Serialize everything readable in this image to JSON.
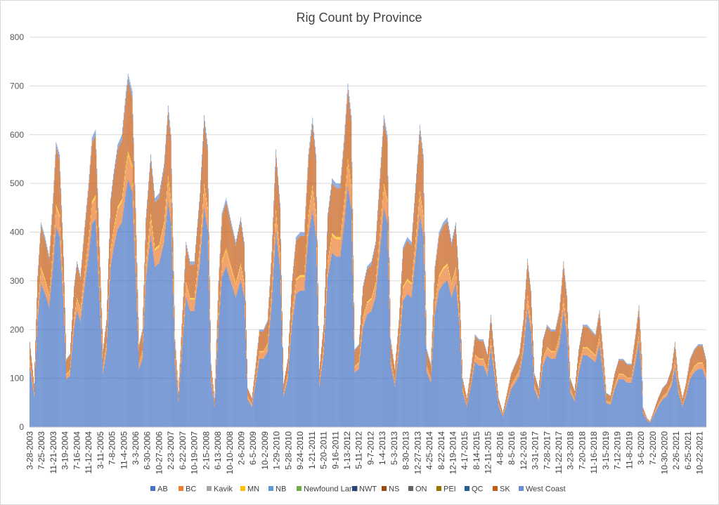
{
  "chart_data": {
    "type": "bar",
    "stacked": true,
    "title": "Rig Count by Province",
    "ylim": [
      0,
      800
    ],
    "yticks": [
      0,
      100,
      200,
      300,
      400,
      500,
      600,
      700,
      800
    ],
    "grid": true,
    "legend_position": "bottom",
    "x_tick_labels": [
      "3-28-2003",
      "7-25-2003",
      "11-21-2003",
      "3-19-2004",
      "7-16-2004",
      "11-12-2004",
      "3-11-2005",
      "7-8-2005",
      "11-4-2005",
      "3-3-2006",
      "6-30-2006",
      "10-27-2006",
      "2-23-2007",
      "6-22-2007",
      "10-19-2007",
      "2-15-2008",
      "6-13-2008",
      "10-10-2008",
      "2-6-2009",
      "6-5-2009",
      "10-2-2009",
      "1-29-2010",
      "5-28-2010",
      "9-24-2010",
      "1-21-2011",
      "5-20-2011",
      "9-16-2011",
      "1-13-2012",
      "5-11-2012",
      "9-7-2012",
      "1-4-2013",
      "5-3-2013",
      "8-30-2013",
      "12-27-2013",
      "4-25-2014",
      "8-22-2014",
      "12-19-2014",
      "4-17-2015",
      "8-14-2015",
      "12-11-2015",
      "4-8-2016",
      "8-5-2016",
      "12-2-2016",
      "3-31-2017",
      "7-28-2017",
      "11-22-2017",
      "3-23-2018",
      "7-20-2018",
      "11-16-2018",
      "3-15-2019",
      "7-12-2019",
      "11-8-2019",
      "3-6-2020",
      "7-2-2020",
      "10-30-2020",
      "2-26-2021",
      "6-25-2021",
      "10-22-2021"
    ],
    "x_start": "2003-03-28",
    "x_end": "2021-12-24",
    "tick_every_weeks": 17,
    "total_anchor_points": [
      [
        "2003-03-28",
        175
      ],
      [
        "2003-05-09",
        90
      ],
      [
        "2003-06-13",
        310
      ],
      [
        "2003-07-18",
        420
      ],
      [
        "2003-08-29",
        390
      ],
      [
        "2003-10-10",
        350
      ],
      [
        "2003-11-21",
        480
      ],
      [
        "2003-12-19",
        585
      ],
      [
        "2004-01-23",
        560
      ],
      [
        "2004-03-05",
        350
      ],
      [
        "2004-04-02",
        140
      ],
      [
        "2004-05-07",
        150
      ],
      [
        "2004-06-18",
        290
      ],
      [
        "2004-07-16",
        340
      ],
      [
        "2004-08-20",
        310
      ],
      [
        "2004-10-01",
        410
      ],
      [
        "2004-11-12",
        500
      ],
      [
        "2004-12-17",
        595
      ],
      [
        "2005-01-21",
        610
      ],
      [
        "2005-03-04",
        370
      ],
      [
        "2005-04-08",
        160
      ],
      [
        "2005-05-13",
        220
      ],
      [
        "2005-06-24",
        470
      ],
      [
        "2005-07-22",
        520
      ],
      [
        "2005-09-02",
        580
      ],
      [
        "2005-10-14",
        600
      ],
      [
        "2005-11-25",
        690
      ],
      [
        "2005-12-16",
        725
      ],
      [
        "2006-01-27",
        690
      ],
      [
        "2006-03-03",
        450
      ],
      [
        "2006-04-07",
        170
      ],
      [
        "2006-05-12",
        200
      ],
      [
        "2006-06-16",
        430
      ],
      [
        "2006-08-04",
        560
      ],
      [
        "2006-09-15",
        470
      ],
      [
        "2006-10-27",
        480
      ],
      [
        "2006-12-15",
        540
      ],
      [
        "2007-01-26",
        660
      ],
      [
        "2007-02-23",
        600
      ],
      [
        "2007-04-06",
        180
      ],
      [
        "2007-05-11",
        75
      ],
      [
        "2007-06-22",
        240
      ],
      [
        "2007-07-27",
        380
      ],
      [
        "2007-09-07",
        340
      ],
      [
        "2007-10-19",
        340
      ],
      [
        "2007-12-14",
        480
      ],
      [
        "2008-01-25",
        640
      ],
      [
        "2008-02-29",
        580
      ],
      [
        "2008-04-04",
        130
      ],
      [
        "2008-05-09",
        60
      ],
      [
        "2008-06-20",
        300
      ],
      [
        "2008-07-25",
        440
      ],
      [
        "2008-09-05",
        470
      ],
      [
        "2008-10-17",
        430
      ],
      [
        "2008-12-12",
        380
      ],
      [
        "2009-01-30",
        430
      ],
      [
        "2009-03-06",
        380
      ],
      [
        "2009-04-10",
        80
      ],
      [
        "2009-05-22",
        60
      ],
      [
        "2009-06-26",
        120
      ],
      [
        "2009-08-07",
        200
      ],
      [
        "2009-09-18",
        200
      ],
      [
        "2009-10-30",
        220
      ],
      [
        "2009-12-11",
        360
      ],
      [
        "2010-01-22",
        570
      ],
      [
        "2010-03-05",
        460
      ],
      [
        "2010-04-09",
        90
      ],
      [
        "2010-05-21",
        140
      ],
      [
        "2010-07-02",
        300
      ],
      [
        "2010-08-13",
        390
      ],
      [
        "2010-09-24",
        400
      ],
      [
        "2010-11-05",
        400
      ],
      [
        "2010-12-17",
        560
      ],
      [
        "2011-01-28",
        635
      ],
      [
        "2011-03-04",
        560
      ],
      [
        "2011-04-08",
        120
      ],
      [
        "2011-05-20",
        210
      ],
      [
        "2011-07-01",
        440
      ],
      [
        "2011-08-12",
        510
      ],
      [
        "2011-09-23",
        500
      ],
      [
        "2011-11-04",
        500
      ],
      [
        "2011-12-16",
        600
      ],
      [
        "2012-01-20",
        705
      ],
      [
        "2012-02-24",
        640
      ],
      [
        "2012-03-30",
        160
      ],
      [
        "2012-05-11",
        170
      ],
      [
        "2012-06-22",
        290
      ],
      [
        "2012-08-03",
        330
      ],
      [
        "2012-09-14",
        340
      ],
      [
        "2012-10-26",
        380
      ],
      [
        "2012-12-07",
        510
      ],
      [
        "2013-01-18",
        640
      ],
      [
        "2013-02-22",
        600
      ],
      [
        "2013-03-29",
        180
      ],
      [
        "2013-05-10",
        120
      ],
      [
        "2013-06-21",
        220
      ],
      [
        "2013-08-02",
        370
      ],
      [
        "2013-09-13",
        390
      ],
      [
        "2013-10-25",
        380
      ],
      [
        "2013-12-06",
        500
      ],
      [
        "2014-01-17",
        620
      ],
      [
        "2014-02-21",
        560
      ],
      [
        "2014-03-28",
        160
      ],
      [
        "2014-05-09",
        130
      ],
      [
        "2014-06-20",
        330
      ],
      [
        "2014-08-01",
        400
      ],
      [
        "2014-09-12",
        420
      ],
      [
        "2014-10-24",
        430
      ],
      [
        "2014-12-05",
        380
      ],
      [
        "2015-01-16",
        420
      ],
      [
        "2015-02-20",
        300
      ],
      [
        "2015-03-27",
        100
      ],
      [
        "2015-05-08",
        60
      ],
      [
        "2015-06-19",
        120
      ],
      [
        "2015-07-31",
        190
      ],
      [
        "2015-09-11",
        180
      ],
      [
        "2015-10-23",
        180
      ],
      [
        "2015-12-04",
        150
      ],
      [
        "2016-01-08",
        230
      ],
      [
        "2016-02-12",
        150
      ],
      [
        "2016-03-25",
        60
      ],
      [
        "2016-05-06",
        30
      ],
      [
        "2016-06-17",
        70
      ],
      [
        "2016-07-29",
        110
      ],
      [
        "2016-09-09",
        130
      ],
      [
        "2016-10-21",
        150
      ],
      [
        "2016-12-02",
        220
      ],
      [
        "2017-01-13",
        345
      ],
      [
        "2017-02-17",
        280
      ],
      [
        "2017-03-24",
        110
      ],
      [
        "2017-05-05",
        80
      ],
      [
        "2017-06-16",
        180
      ],
      [
        "2017-07-28",
        210
      ],
      [
        "2017-09-08",
        200
      ],
      [
        "2017-10-20",
        200
      ],
      [
        "2017-12-01",
        240
      ],
      [
        "2018-01-12",
        340
      ],
      [
        "2018-02-16",
        270
      ],
      [
        "2018-03-23",
        100
      ],
      [
        "2018-05-04",
        75
      ],
      [
        "2018-06-15",
        160
      ],
      [
        "2018-07-27",
        210
      ],
      [
        "2018-09-07",
        210
      ],
      [
        "2018-10-19",
        200
      ],
      [
        "2018-11-30",
        190
      ],
      [
        "2019-01-11",
        240
      ],
      [
        "2019-02-15",
        160
      ],
      [
        "2019-03-22",
        70
      ],
      [
        "2019-05-03",
        65
      ],
      [
        "2019-06-14",
        110
      ],
      [
        "2019-07-26",
        140
      ],
      [
        "2019-09-06",
        140
      ],
      [
        "2019-10-18",
        130
      ],
      [
        "2019-11-29",
        130
      ],
      [
        "2020-01-10",
        190
      ],
      [
        "2020-02-14",
        250
      ],
      [
        "2020-03-13",
        150
      ],
      [
        "2020-03-27",
        40
      ],
      [
        "2020-05-08",
        18
      ],
      [
        "2020-06-05",
        12
      ],
      [
        "2020-07-17",
        35
      ],
      [
        "2020-08-28",
        60
      ],
      [
        "2020-10-09",
        80
      ],
      [
        "2020-11-20",
        90
      ],
      [
        "2021-01-08",
        120
      ],
      [
        "2021-02-12",
        175
      ],
      [
        "2021-03-19",
        100
      ],
      [
        "2021-04-30",
        60
      ],
      [
        "2021-06-04",
        90
      ],
      [
        "2021-07-16",
        140
      ],
      [
        "2021-08-27",
        160
      ],
      [
        "2021-10-08",
        170
      ],
      [
        "2021-11-19",
        170
      ],
      [
        "2021-12-24",
        140
      ]
    ],
    "series": [
      {
        "name": "AB",
        "color": "#4472C4",
        "share_of_total": 0.7
      },
      {
        "name": "BC",
        "color": "#ED7D31",
        "share_of_total": 0.07
      },
      {
        "name": "Kavik",
        "color": "#A5A5A5",
        "share_of_total": 0
      },
      {
        "name": "MN",
        "color": "#FFC000",
        "share_of_total": 0.01
      },
      {
        "name": "NB",
        "color": "#5B9BD5",
        "share_of_total": 0
      },
      {
        "name": "Newfound Land",
        "color": "#70AD47",
        "share_of_total": 0
      },
      {
        "name": "NWT",
        "color": "#264478",
        "share_of_total": 0
      },
      {
        "name": "NS",
        "color": "#9E480E",
        "share_of_total": 0
      },
      {
        "name": "ON",
        "color": "#636363",
        "share_of_total": 0
      },
      {
        "name": "PEI",
        "color": "#997300",
        "share_of_total": 0
      },
      {
        "name": "QC",
        "color": "#255E91",
        "share_of_total": 0
      },
      {
        "name": "SK",
        "color": "#C55A11",
        "share_of_total": 0.2
      },
      {
        "name": "West Coast",
        "color": "#698ED0",
        "share_of_total": 0.02
      }
    ]
  }
}
